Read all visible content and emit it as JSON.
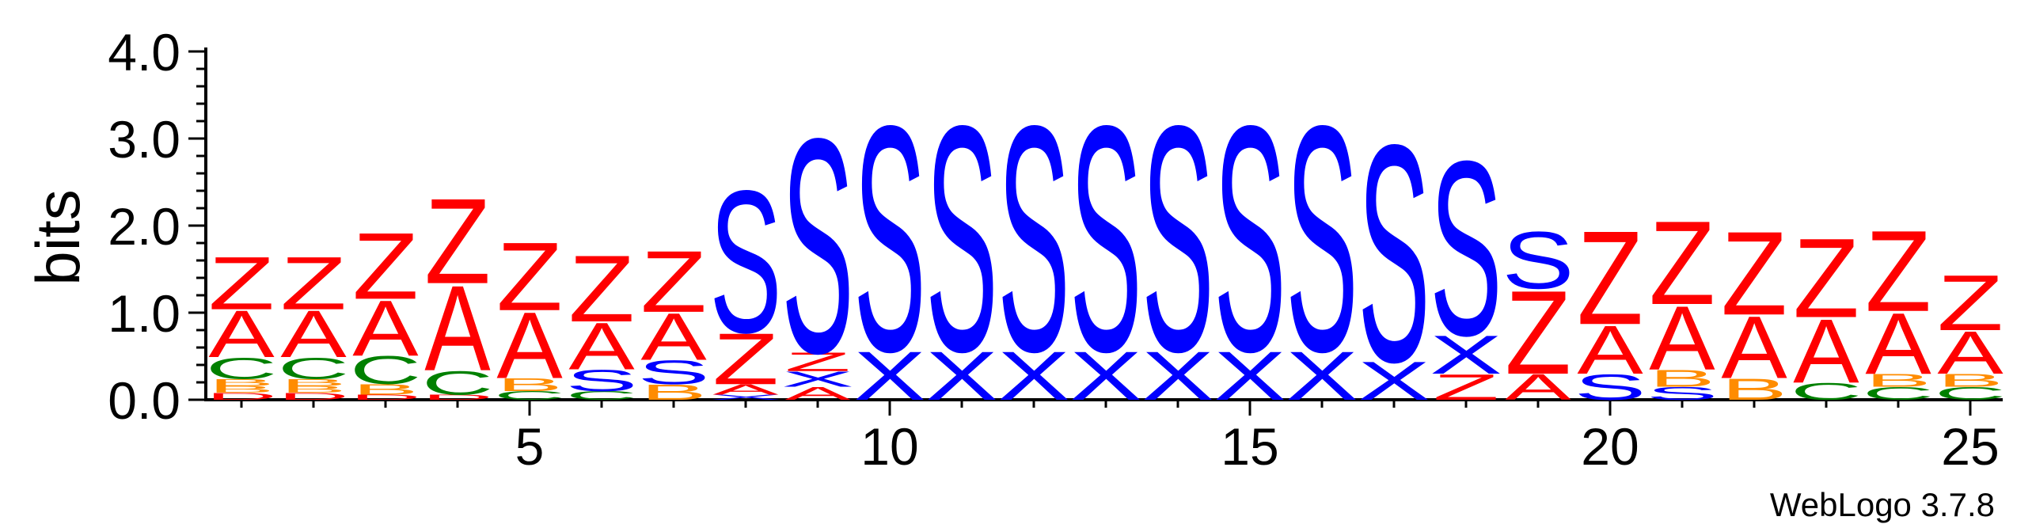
{
  "chart_data": {
    "type": "sequence-logo",
    "ylabel": "bits",
    "ylim": [
      0,
      4.0
    ],
    "yticks": [
      "0.0",
      "1.0",
      "2.0",
      "3.0",
      "4.0"
    ],
    "xticks": [
      5,
      10,
      15,
      20,
      25
    ],
    "footer": "WebLogo 3.7.8",
    "colors": {
      "A": "#ff0000",
      "Z": "#ff0000",
      "S": "#0000ff",
      "X": "#0000ff",
      "C": "#008000",
      "B": "#ff8c00",
      "D": "#ff0000"
    },
    "positions": [
      {
        "pos": 1,
        "stack": [
          [
            "D",
            0.08
          ],
          [
            "B",
            0.08
          ],
          [
            "B",
            0.08
          ],
          [
            "C",
            0.25
          ],
          [
            "A",
            0.55
          ],
          [
            "Z",
            0.62
          ]
        ]
      },
      {
        "pos": 2,
        "stack": [
          [
            "D",
            0.08
          ],
          [
            "B",
            0.08
          ],
          [
            "B",
            0.08
          ],
          [
            "C",
            0.25
          ],
          [
            "A",
            0.55
          ],
          [
            "Z",
            0.62
          ]
        ]
      },
      {
        "pos": 3,
        "stack": [
          [
            "D",
            0.06
          ],
          [
            "B",
            0.12
          ],
          [
            "C",
            0.33
          ],
          [
            "A",
            0.65
          ],
          [
            "Z",
            0.78
          ]
        ]
      },
      {
        "pos": 4,
        "stack": [
          [
            "D",
            0.06
          ],
          [
            "C",
            0.28
          ],
          [
            "A",
            1.0
          ],
          [
            "Z",
            1.0
          ]
        ]
      },
      {
        "pos": 5,
        "stack": [
          [
            "C",
            0.1
          ],
          [
            "B",
            0.15
          ],
          [
            "A",
            0.78
          ],
          [
            "Z",
            0.8
          ]
        ]
      },
      {
        "pos": 6,
        "stack": [
          [
            "C",
            0.1
          ],
          [
            "S",
            0.25
          ],
          [
            "A",
            0.55
          ],
          [
            "Z",
            0.78
          ]
        ]
      },
      {
        "pos": 7,
        "stack": [
          [
            "B",
            0.18
          ],
          [
            "S",
            0.28
          ],
          [
            "A",
            0.55
          ],
          [
            "Z",
            0.72
          ]
        ]
      },
      {
        "pos": 8,
        "stack": [
          [
            "X",
            0.06
          ],
          [
            "A",
            0.12
          ],
          [
            "Z",
            0.6
          ],
          [
            "S",
            1.67
          ]
        ]
      },
      {
        "pos": 9,
        "stack": [
          [
            "A",
            0.15
          ],
          [
            "X",
            0.18
          ],
          [
            "Z",
            0.22
          ],
          [
            "S",
            2.52
          ]
        ]
      },
      {
        "pos": 10,
        "stack": [
          [
            "X",
            0.57
          ],
          [
            "S",
            2.65
          ]
        ]
      },
      {
        "pos": 11,
        "stack": [
          [
            "X",
            0.57
          ],
          [
            "S",
            2.65
          ]
        ]
      },
      {
        "pos": 12,
        "stack": [
          [
            "X",
            0.57
          ],
          [
            "S",
            2.65
          ]
        ]
      },
      {
        "pos": 13,
        "stack": [
          [
            "X",
            0.57
          ],
          [
            "S",
            2.65
          ]
        ]
      },
      {
        "pos": 14,
        "stack": [
          [
            "X",
            0.57
          ],
          [
            "S",
            2.65
          ]
        ]
      },
      {
        "pos": 15,
        "stack": [
          [
            "X",
            0.57
          ],
          [
            "S",
            2.65
          ]
        ]
      },
      {
        "pos": 16,
        "stack": [
          [
            "X",
            0.57
          ],
          [
            "S",
            2.65
          ]
        ]
      },
      {
        "pos": 17,
        "stack": [
          [
            "X",
            0.45
          ],
          [
            "S",
            2.55
          ]
        ]
      },
      {
        "pos": 18,
        "stack": [
          [
            "Z",
            0.3
          ],
          [
            "X",
            0.45
          ],
          [
            "S",
            2.05
          ]
        ]
      },
      {
        "pos": 19,
        "stack": [
          [
            "A",
            0.3
          ],
          [
            "Z",
            0.98
          ],
          [
            "S",
            0.67
          ]
        ]
      },
      {
        "pos": 20,
        "stack": [
          [
            "S",
            0.3
          ],
          [
            "A",
            0.57
          ],
          [
            "Z",
            1.1
          ]
        ]
      },
      {
        "pos": 21,
        "stack": [
          [
            "S",
            0.15
          ],
          [
            "B",
            0.2
          ],
          [
            "A",
            0.75
          ],
          [
            "Z",
            0.98
          ]
        ]
      },
      {
        "pos": 22,
        "stack": [
          [
            "B",
            0.25
          ],
          [
            "A",
            0.73
          ],
          [
            "Z",
            0.98
          ]
        ]
      },
      {
        "pos": 23,
        "stack": [
          [
            "C",
            0.2
          ],
          [
            "A",
            0.75
          ],
          [
            "Z",
            0.93
          ]
        ]
      },
      {
        "pos": 24,
        "stack": [
          [
            "C",
            0.15
          ],
          [
            "B",
            0.15
          ],
          [
            "A",
            0.72
          ],
          [
            "Z",
            0.95
          ]
        ]
      },
      {
        "pos": 25,
        "stack": [
          [
            "C",
            0.15
          ],
          [
            "B",
            0.15
          ],
          [
            "A",
            0.5
          ],
          [
            "Z",
            0.65
          ]
        ]
      }
    ]
  }
}
